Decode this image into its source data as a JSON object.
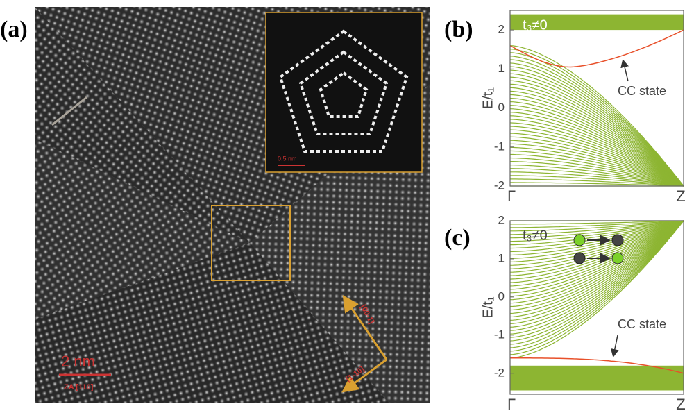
{
  "panels": [
    {
      "label": "(a)",
      "scale_bar": "2 nm",
      "zone_axis": "ZA [110]",
      "directions": [
        "[00-1]",
        "[1-10]"
      ],
      "inset_scale": "0.5 nm"
    },
    {
      "label": "(b)",
      "ylabel": "E/t₁",
      "annotation": "t₃≠0",
      "callout": "CC state",
      "categories": [
        "Γ",
        "Z"
      ],
      "ylim": [
        -2,
        2.5
      ],
      "yticks": [
        -2,
        -1,
        0,
        1,
        2
      ]
    },
    {
      "label": "(c)",
      "ylabel": "E/t₁",
      "annotation": "t₃≠0",
      "callout": "CC state",
      "categories": [
        "Γ",
        "Z"
      ],
      "ylim": [
        -2.55,
        2
      ],
      "yticks": [
        -2,
        -1,
        0,
        1,
        2
      ]
    }
  ]
}
